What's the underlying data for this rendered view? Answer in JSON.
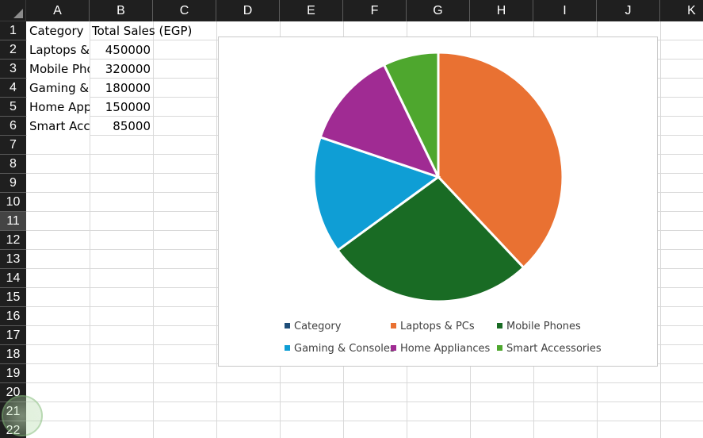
{
  "sheet": {
    "columns": [
      "A",
      "B",
      "C",
      "D",
      "E",
      "F",
      "G",
      "H",
      "I",
      "J",
      "K"
    ],
    "rows": [
      "1",
      "2",
      "3",
      "4",
      "5",
      "6",
      "7",
      "8",
      "9",
      "10",
      "11",
      "12",
      "13",
      "14",
      "15",
      "16",
      "17",
      "18",
      "19",
      "20",
      "21",
      "22"
    ],
    "selected_row": "11",
    "cells": {
      "A1": "Category",
      "B1": "Total Sales (EGP)",
      "A2": "Laptops & PCs",
      "B2": "450000",
      "A3": "Mobile Phones",
      "B3": "320000",
      "A4": "Gaming & Consoles",
      "B4": "180000",
      "A5": "Home Appliances",
      "B5": "150000",
      "A6": "Smart Accessories",
      "B6": "85000"
    }
  },
  "chart_data": {
    "type": "pie",
    "title": "",
    "categories": [
      "Category",
      "Laptops & PCs",
      "Mobile Phones",
      "Gaming & Consoles",
      "Home Appliances",
      "Smart Accessories"
    ],
    "values": [
      0,
      450000,
      320000,
      180000,
      150000,
      85000
    ],
    "colors": [
      "#1f4e79",
      "#e97132",
      "#196b24",
      "#0f9ed5",
      "#a02b93",
      "#4ea72e"
    ],
    "legend_position": "bottom"
  }
}
